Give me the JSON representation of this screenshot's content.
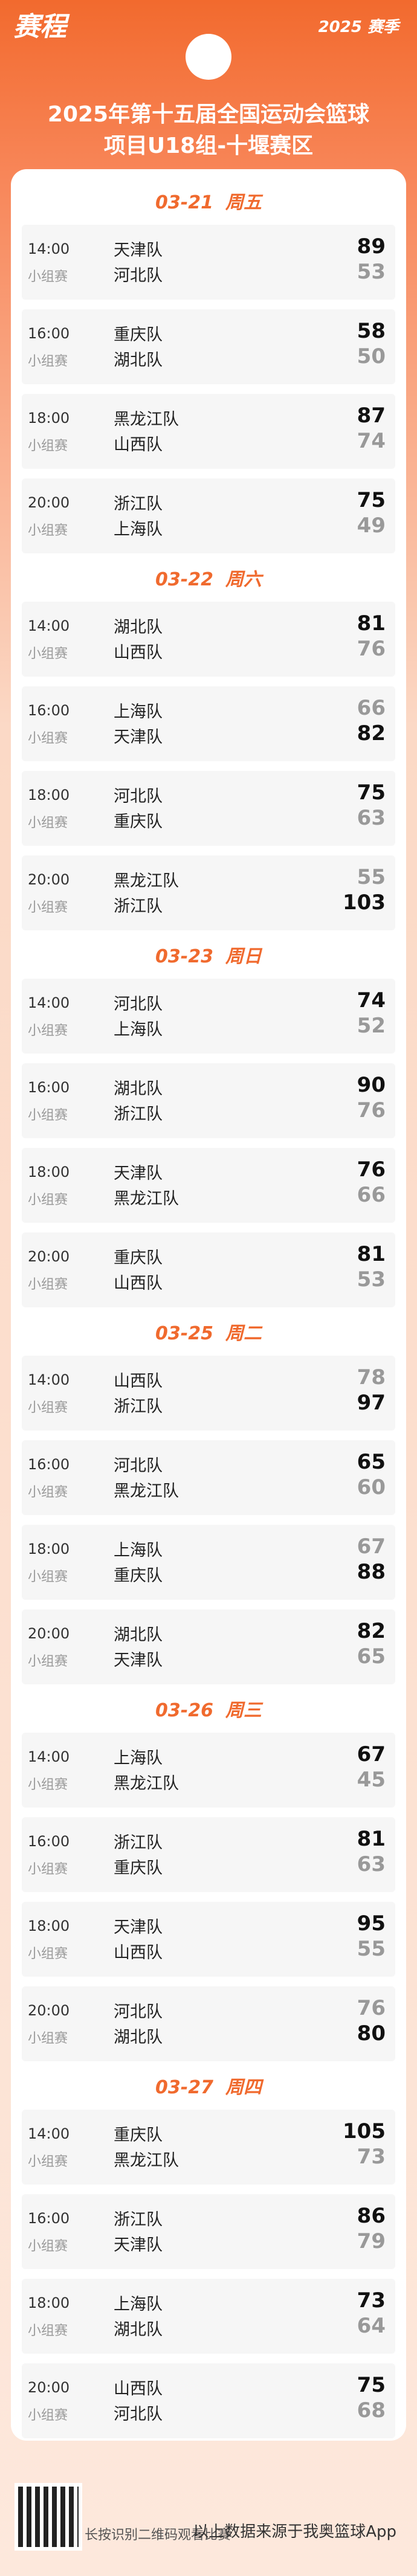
{
  "header": {
    "tag": "赛程",
    "season": "2025 赛季",
    "title_lines": [
      "2025年第十五届全国运动会篮球",
      "项目U18组-十堰赛区"
    ]
  },
  "days": [
    {
      "date": "03-21",
      "weekday": "周五",
      "matches": [
        {
          "time": "14:00",
          "stage": "小组赛",
          "teams": [
            {
              "name": "天津队",
              "score": 89
            },
            {
              "name": "河北队",
              "score": 53
            }
          ]
        },
        {
          "time": "16:00",
          "stage": "小组赛",
          "teams": [
            {
              "name": "重庆队",
              "score": 58
            },
            {
              "name": "湖北队",
              "score": 50
            }
          ]
        },
        {
          "time": "18:00",
          "stage": "小组赛",
          "teams": [
            {
              "name": "黑龙江队",
              "score": 87
            },
            {
              "name": "山西队",
              "score": 74
            }
          ]
        },
        {
          "time": "20:00",
          "stage": "小组赛",
          "teams": [
            {
              "name": "浙江队",
              "score": 75
            },
            {
              "name": "上海队",
              "score": 49
            }
          ]
        }
      ]
    },
    {
      "date": "03-22",
      "weekday": "周六",
      "matches": [
        {
          "time": "14:00",
          "stage": "小组赛",
          "teams": [
            {
              "name": "湖北队",
              "score": 81
            },
            {
              "name": "山西队",
              "score": 76
            }
          ]
        },
        {
          "time": "16:00",
          "stage": "小组赛",
          "teams": [
            {
              "name": "上海队",
              "score": 66
            },
            {
              "name": "天津队",
              "score": 82
            }
          ]
        },
        {
          "time": "18:00",
          "stage": "小组赛",
          "teams": [
            {
              "name": "河北队",
              "score": 75
            },
            {
              "name": "重庆队",
              "score": 63
            }
          ]
        },
        {
          "time": "20:00",
          "stage": "小组赛",
          "teams": [
            {
              "name": "黑龙江队",
              "score": 55
            },
            {
              "name": "浙江队",
              "score": 103
            }
          ]
        }
      ]
    },
    {
      "date": "03-23",
      "weekday": "周日",
      "matches": [
        {
          "time": "14:00",
          "stage": "小组赛",
          "teams": [
            {
              "name": "河北队",
              "score": 74
            },
            {
              "name": "上海队",
              "score": 52
            }
          ]
        },
        {
          "time": "16:00",
          "stage": "小组赛",
          "teams": [
            {
              "name": "湖北队",
              "score": 90
            },
            {
              "name": "浙江队",
              "score": 76
            }
          ]
        },
        {
          "time": "18:00",
          "stage": "小组赛",
          "teams": [
            {
              "name": "天津队",
              "score": 76
            },
            {
              "name": "黑龙江队",
              "score": 66
            }
          ]
        },
        {
          "time": "20:00",
          "stage": "小组赛",
          "teams": [
            {
              "name": "重庆队",
              "score": 81
            },
            {
              "name": "山西队",
              "score": 53
            }
          ]
        }
      ]
    },
    {
      "date": "03-25",
      "weekday": "周二",
      "matches": [
        {
          "time": "14:00",
          "stage": "小组赛",
          "teams": [
            {
              "name": "山西队",
              "score": 78
            },
            {
              "name": "浙江队",
              "score": 97
            }
          ]
        },
        {
          "time": "16:00",
          "stage": "小组赛",
          "teams": [
            {
              "name": "河北队",
              "score": 65
            },
            {
              "name": "黑龙江队",
              "score": 60
            }
          ]
        },
        {
          "time": "18:00",
          "stage": "小组赛",
          "teams": [
            {
              "name": "上海队",
              "score": 67
            },
            {
              "name": "重庆队",
              "score": 88
            }
          ]
        },
        {
          "time": "20:00",
          "stage": "小组赛",
          "teams": [
            {
              "name": "湖北队",
              "score": 82
            },
            {
              "name": "天津队",
              "score": 65
            }
          ]
        }
      ]
    },
    {
      "date": "03-26",
      "weekday": "周三",
      "matches": [
        {
          "time": "14:00",
          "stage": "小组赛",
          "teams": [
            {
              "name": "上海队",
              "score": 67
            },
            {
              "name": "黑龙江队",
              "score": 45
            }
          ]
        },
        {
          "time": "16:00",
          "stage": "小组赛",
          "teams": [
            {
              "name": "浙江队",
              "score": 81
            },
            {
              "name": "重庆队",
              "score": 63
            }
          ]
        },
        {
          "time": "18:00",
          "stage": "小组赛",
          "teams": [
            {
              "name": "天津队",
              "score": 95
            },
            {
              "name": "山西队",
              "score": 55
            }
          ]
        },
        {
          "time": "20:00",
          "stage": "小组赛",
          "teams": [
            {
              "name": "河北队",
              "score": 76
            },
            {
              "name": "湖北队",
              "score": 80
            }
          ]
        }
      ]
    },
    {
      "date": "03-27",
      "weekday": "周四",
      "matches": [
        {
          "time": "14:00",
          "stage": "小组赛",
          "teams": [
            {
              "name": "重庆队",
              "score": 105
            },
            {
              "name": "黑龙江队",
              "score": 73
            }
          ]
        },
        {
          "time": "16:00",
          "stage": "小组赛",
          "teams": [
            {
              "name": "浙江队",
              "score": 86
            },
            {
              "name": "天津队",
              "score": 79
            }
          ]
        },
        {
          "time": "18:00",
          "stage": "小组赛",
          "teams": [
            {
              "name": "上海队",
              "score": 73
            },
            {
              "name": "湖北队",
              "score": 64
            }
          ]
        },
        {
          "time": "20:00",
          "stage": "小组赛",
          "teams": [
            {
              "name": "山西队",
              "score": 75
            },
            {
              "name": "河北队",
              "score": 68
            }
          ]
        }
      ]
    }
  ],
  "footer": {
    "qr_caption": "长按识别二维码观看比赛",
    "source": "以上数据来源于我奥篮球App"
  }
}
